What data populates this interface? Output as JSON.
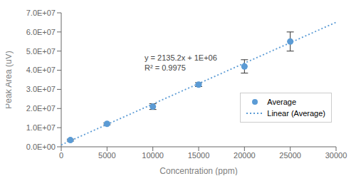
{
  "chart_data": {
    "type": "scatter",
    "xlabel": "Concentration (ppm)",
    "ylabel": "Peak Area (uV)",
    "annotations": [
      "y = 2135.2x + 1E+06",
      "R² = 0.9975"
    ],
    "xlim": [
      0,
      30000
    ],
    "ylim": [
      0,
      70000000
    ],
    "xticks": [
      0,
      5000,
      10000,
      15000,
      20000,
      25000,
      30000
    ],
    "yticks": [
      {
        "value": 0,
        "label": "0.0E+00"
      },
      {
        "value": 10000000,
        "label": "1.0E+07"
      },
      {
        "value": 20000000,
        "label": "2.0E+07"
      },
      {
        "value": 30000000,
        "label": "3.0E+07"
      },
      {
        "value": 40000000,
        "label": "4.0E+07"
      },
      {
        "value": 50000000,
        "label": "5.0E+07"
      },
      {
        "value": 60000000,
        "label": "6.0E+07"
      },
      {
        "value": 70000000,
        "label": "7.0E+07"
      }
    ],
    "grid": false,
    "legend": "lower right",
    "series": [
      {
        "name": "Average",
        "type": "scatter",
        "color": "#5b9bd5",
        "marker": "circle",
        "x": [
          1000,
          5000,
          10000,
          15000,
          20000,
          25000
        ],
        "values": [
          3500000,
          12000000,
          21000000,
          32500000,
          42000000,
          55000000
        ],
        "yerr": [
          500000,
          500000,
          1500000,
          1000000,
          3500000,
          5000000
        ]
      },
      {
        "name": "Linear (Average)",
        "type": "line",
        "color": "#5b9bd5",
        "line_style": "dotted",
        "x": [
          0,
          30000
        ],
        "values": [
          1000000,
          65056000
        ]
      }
    ]
  }
}
